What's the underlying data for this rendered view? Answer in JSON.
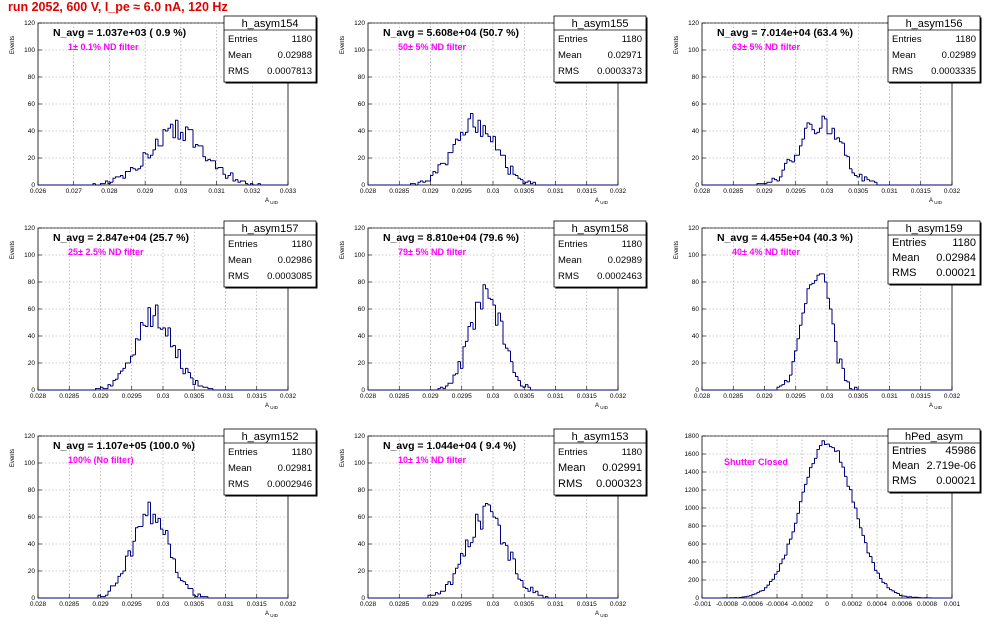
{
  "header": {
    "title": "run 2052,   600 V, I_pe ≈ 6.0 nA, 120 Hz"
  },
  "colors": {
    "title": "#e00000",
    "histogram": "#00007f",
    "filter_label": "#ff00ff",
    "grid": "#9a9a9a"
  },
  "chart_data": [
    {
      "type": "bar",
      "name": "h_asym154",
      "n_avg": "N_avg = 1.037e+03 ( 0.9 %)",
      "filter": "1± 0.1% ND filter",
      "stats": {
        "entries": {
          "label": "Entries",
          "value": "1180"
        },
        "mean": {
          "label": "Mean",
          "value": "0.02988"
        },
        "rms": {
          "label": "RMS",
          "value": "0.0007813"
        }
      },
      "stat_style": "small",
      "xlabel": "A_UID",
      "ylabel": "Events",
      "xlim": [
        0.026,
        0.033
      ],
      "ylim": [
        0,
        120
      ],
      "xticks": [
        "0.026",
        "0.027",
        "0.028",
        "0.029",
        "0.03",
        "0.031",
        "0.032",
        "0.033"
      ],
      "yticks": [
        "0",
        "20",
        "40",
        "60",
        "80",
        "100",
        "120"
      ],
      "mean": 0.02988,
      "sigma": 0.00078,
      "peak": 41,
      "seed": 154
    },
    {
      "type": "bar",
      "name": "h_asym155",
      "n_avg": "N_avg = 5.608e+04 (50.7 %)",
      "filter": "50± 5% ND filter",
      "stats": {
        "entries": {
          "label": "Entries",
          "value": "1180"
        },
        "mean": {
          "label": "Mean",
          "value": "0.02971"
        },
        "rms": {
          "label": "RMS",
          "value": "0.0003373"
        }
      },
      "stat_style": "small",
      "xlabel": "A_UID",
      "ylabel": "Events",
      "xlim": [
        0.028,
        0.032
      ],
      "ylim": [
        0,
        120
      ],
      "xticks": [
        "0.028",
        "0.0285",
        "0.029",
        "0.0295",
        "0.03",
        "0.0305",
        "0.031",
        "0.0315",
        "0.032"
      ],
      "yticks": [
        "0",
        "20",
        "40",
        "60",
        "80",
        "100",
        "120"
      ],
      "mean": 0.02971,
      "sigma": 0.00034,
      "peak": 46,
      "seed": 155
    },
    {
      "type": "bar",
      "name": "h_asym156",
      "n_avg": "N_avg = 7.014e+04 (63.4 %)",
      "filter": "63± 5% ND filter",
      "stats": {
        "entries": {
          "label": "Entries",
          "value": "1180"
        },
        "mean": {
          "label": "Mean",
          "value": "0.02989"
        },
        "rms": {
          "label": "RMS",
          "value": "0.0003335"
        }
      },
      "stat_style": "small",
      "xlabel": "A_UID",
      "ylabel": "Events",
      "xlim": [
        0.028,
        0.032
      ],
      "ylim": [
        0,
        120
      ],
      "xticks": [
        "0.028",
        "0.0285",
        "0.029",
        "0.0295",
        "0.03",
        "0.0305",
        "0.031",
        "0.0315",
        "0.032"
      ],
      "yticks": [
        "0",
        "20",
        "40",
        "60",
        "80",
        "100",
        "120"
      ],
      "mean": 0.02989,
      "sigma": 0.00033,
      "peak": 47,
      "seed": 156
    },
    {
      "type": "bar",
      "name": "h_asym157",
      "n_avg": "N_avg = 2.847e+04 (25.7 %)",
      "filter": "25± 2.5% ND filter",
      "stats": {
        "entries": {
          "label": "Entries",
          "value": "1180"
        },
        "mean": {
          "label": "Mean",
          "value": "0.02986"
        },
        "rms": {
          "label": "RMS",
          "value": "0.0003085"
        }
      },
      "stat_style": "small",
      "xlabel": "A_UID",
      "ylabel": "Events",
      "xlim": [
        0.028,
        0.032
      ],
      "ylim": [
        0,
        120
      ],
      "xticks": [
        "0.028",
        "0.0285",
        "0.029",
        "0.0295",
        "0.03",
        "0.0305",
        "0.031",
        "0.0315",
        "0.032"
      ],
      "yticks": [
        "0",
        "20",
        "40",
        "60",
        "80",
        "100",
        "120"
      ],
      "mean": 0.02986,
      "sigma": 0.00031,
      "peak": 56,
      "seed": 157
    },
    {
      "type": "bar",
      "name": "h_asym158",
      "n_avg": "N_avg = 8.810e+04 (79.6 %)",
      "filter": "79± 5% ND filter",
      "stats": {
        "entries": {
          "label": "Entries",
          "value": "1180"
        },
        "mean": {
          "label": "Mean",
          "value": "0.02989"
        },
        "rms": {
          "label": "RMS",
          "value": "0.0002463"
        }
      },
      "stat_style": "small",
      "xlabel": "A_UID",
      "ylabel": "Events",
      "xlim": [
        0.028,
        0.032
      ],
      "ylim": [
        0,
        120
      ],
      "xticks": [
        "0.028",
        "0.0285",
        "0.029",
        "0.0295",
        "0.03",
        "0.0305",
        "0.031",
        "0.0315",
        "0.032"
      ],
      "yticks": [
        "0",
        "20",
        "40",
        "60",
        "80",
        "100",
        "120"
      ],
      "mean": 0.02989,
      "sigma": 0.00025,
      "peak": 72,
      "seed": 158
    },
    {
      "type": "bar",
      "name": "h_asym159",
      "n_avg": "N_avg = 4.455e+04 (40.3 %)",
      "filter": "40± 4% ND filter",
      "stats": {
        "entries": {
          "label": "Entries",
          "value": "1180"
        },
        "mean": {
          "label": "Mean",
          "value": "0.02984"
        },
        "rms": {
          "label": "RMS",
          "value": "0.00021"
        }
      },
      "stat_style": "big",
      "xlabel": "A_UID",
      "ylabel": "Events",
      "xlim": [
        0.028,
        0.032
      ],
      "ylim": [
        0,
        120
      ],
      "xticks": [
        "0.028",
        "0.0285",
        "0.029",
        "0.0295",
        "0.03",
        "0.0305",
        "0.031",
        "0.0315",
        "0.032"
      ],
      "yticks": [
        "0",
        "20",
        "40",
        "60",
        "80",
        "100",
        "120"
      ],
      "mean": 0.02984,
      "sigma": 0.00021,
      "peak": 92,
      "seed": 159
    },
    {
      "type": "bar",
      "name": "h_asym152",
      "n_avg": "N_avg = 1.107e+05 (100.0 %)",
      "filter": "100% (No filter)",
      "stats": {
        "entries": {
          "label": "Entries",
          "value": "1180"
        },
        "mean": {
          "label": "Mean",
          "value": "0.02981"
        },
        "rms": {
          "label": "RMS",
          "value": "0.0002946"
        }
      },
      "stat_style": "small",
      "xlabel": "A_UID",
      "ylabel": "Events",
      "xlim": [
        0.028,
        0.032
      ],
      "ylim": [
        0,
        120
      ],
      "xticks": [
        "0.028",
        "0.0285",
        "0.029",
        "0.0295",
        "0.03",
        "0.0305",
        "0.031",
        "0.0315",
        "0.032"
      ],
      "yticks": [
        "0",
        "20",
        "40",
        "60",
        "80",
        "100",
        "120"
      ],
      "mean": 0.02981,
      "sigma": 0.00029,
      "peak": 64,
      "seed": 152
    },
    {
      "type": "bar",
      "name": "h_asym153",
      "n_avg": "N_avg = 1.044e+04 ( 9.4 %)",
      "filter": "10± 1% ND filter",
      "stats": {
        "entries": {
          "label": "Entries",
          "value": "1180"
        },
        "mean": {
          "label": "Mean",
          "value": "0.02991"
        },
        "rms": {
          "label": "RMS",
          "value": "0.000323"
        }
      },
      "stat_style": "mixed",
      "xlabel": "A_UID",
      "ylabel": "Events",
      "xlim": [
        0.028,
        0.032
      ],
      "ylim": [
        0,
        120
      ],
      "xticks": [
        "0.028",
        "0.0285",
        "0.029",
        "0.0295",
        "0.03",
        "0.0305",
        "0.031",
        "0.0315",
        "0.032"
      ],
      "yticks": [
        "0",
        "20",
        "40",
        "60",
        "80",
        "100",
        "120"
      ],
      "mean": 0.02991,
      "sigma": 0.00032,
      "peak": 62,
      "seed": 153
    },
    {
      "type": "bar",
      "name": "hPed_asym",
      "n_avg": "",
      "filter": "Shutter Closed",
      "stats": {
        "entries": {
          "label": "Entries",
          "value": "45986"
        },
        "mean": {
          "label": "Mean",
          "value": "2.719e-06"
        },
        "rms": {
          "label": "RMS",
          "value": "0.00021"
        }
      },
      "stat_style": "big",
      "xlabel": "",
      "ylabel": "",
      "xlim": [
        -0.001,
        0.001
      ],
      "ylim": [
        0,
        1900
      ],
      "xticks": [
        "-0.001",
        "-0.0008",
        "-0.0006",
        "-0.0004",
        "-0.0002",
        "0",
        "0.0002",
        "0.0004",
        "0.0006",
        "0.0008",
        "0.001"
      ],
      "yticks": [
        "0",
        "200",
        "400",
        "600",
        "800",
        "1000",
        "1200",
        "1400",
        "1600",
        "1800"
      ],
      "mean": 2.7e-06,
      "sigma": 0.00021,
      "peak": 1830,
      "seed": 999
    }
  ]
}
